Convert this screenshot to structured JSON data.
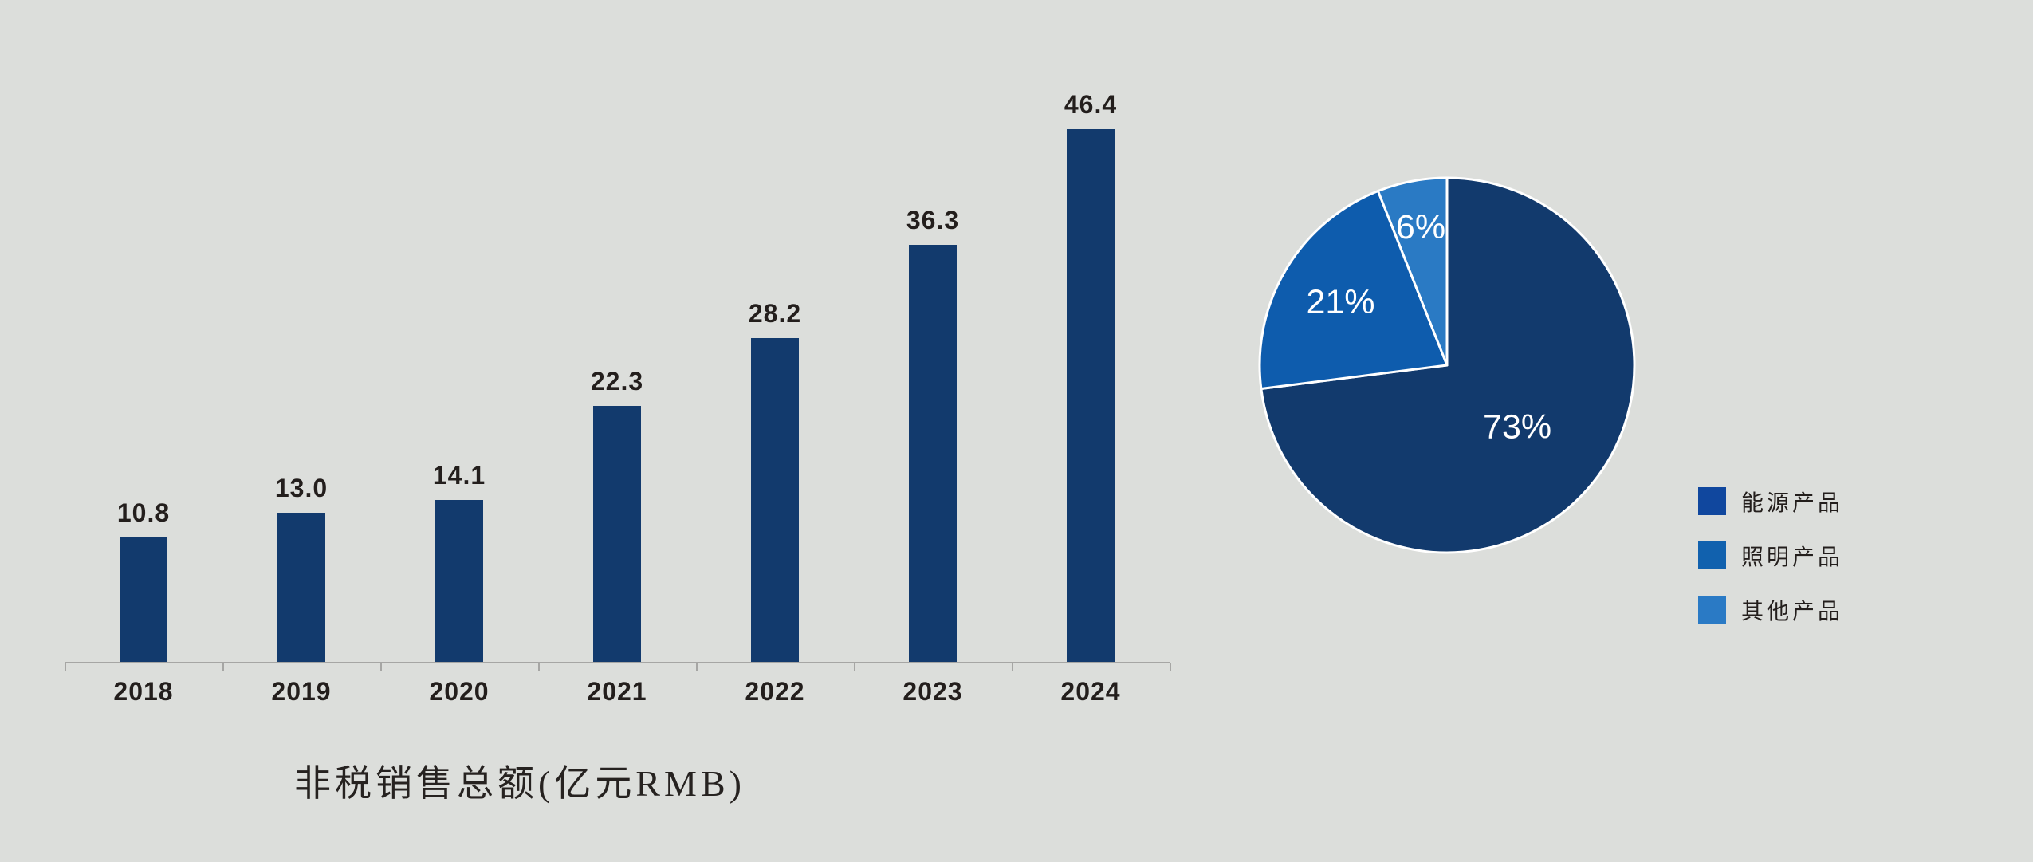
{
  "page": {
    "background_color": "#DCDEDB",
    "text_color": "#231E1C"
  },
  "chart_data": [
    {
      "type": "bar",
      "title": "非税销售总额(亿元RMB)",
      "categories": [
        "2018",
        "2019",
        "2020",
        "2021",
        "2022",
        "2023",
        "2024"
      ],
      "values": [
        10.8,
        13.0,
        14.1,
        22.3,
        28.2,
        36.3,
        46.4
      ],
      "value_labels": [
        "10.8",
        "13.0",
        "14.1",
        "22.3",
        "28.2",
        "36.3",
        "46.4"
      ],
      "bar_color": "#123A6D",
      "value_label_color": "#231E1C",
      "category_label_color": "#231E1C",
      "title_color": "#262220",
      "axis_color": "#A6A6A4",
      "ylim": [
        0,
        50
      ],
      "grid": false,
      "legend_position": "none",
      "value_labels_shown": true
    },
    {
      "type": "pie",
      "start_angle_deg_from_top": 0,
      "direction": "clockwise",
      "stroke_color": "#FFFFFF",
      "data_label_color": "#FFFFFF",
      "legend_position": "right",
      "slices": [
        {
          "id": "energy",
          "label": "能源产品",
          "value_pct": 73,
          "data_label": "73%",
          "color": "#123A6D",
          "legend_color": "#10479E"
        },
        {
          "id": "lighting",
          "label": "照明产品",
          "value_pct": 21,
          "data_label": "21%",
          "color": "#0E5CAD",
          "legend_color": "#1161AE"
        },
        {
          "id": "other",
          "label": "其他产品",
          "value_pct": 6,
          "data_label": "6%",
          "color": "#2A7AC4",
          "legend_color": "#2A7AC5"
        }
      ]
    }
  ]
}
